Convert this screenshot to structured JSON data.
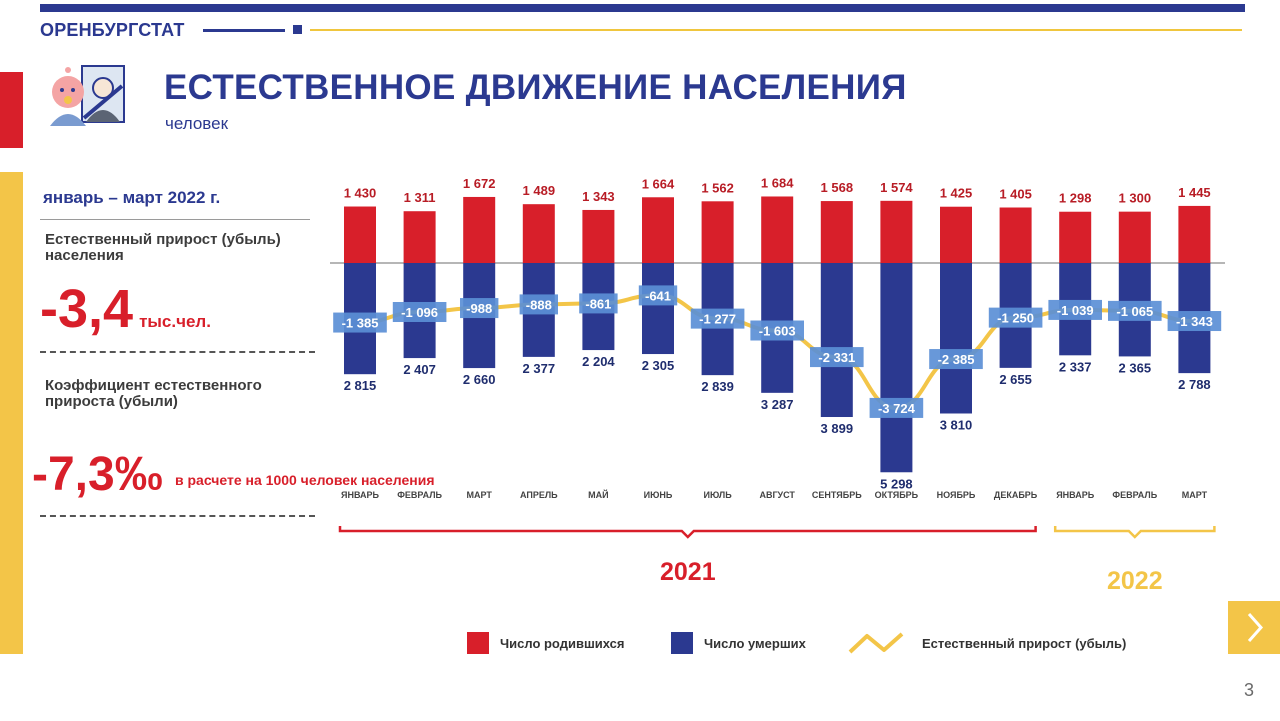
{
  "header": {
    "brand": "ОРЕНБУРГСТАТ",
    "title": "ЕСТЕСТВЕННОЕ ДВИЖЕНИЕ НАСЕЛЕНИЯ",
    "subtitle": "человек"
  },
  "summary": {
    "period": "январь – март 2022 г.",
    "growth_label": "Естественный прирост (убыль) населения",
    "growth_value": "-3,4",
    "growth_unit": "тыс.чел.",
    "coef_label": "Коэффициент естественного прироста (убыли)",
    "coef_value": "-7,3‰",
    "coef_unit": "в расчете на 1000 человек населения"
  },
  "chart_data": {
    "type": "bar",
    "categories": [
      "ЯНВАРЬ",
      "ФЕВРАЛЬ",
      "МАРТ",
      "АПРЕЛЬ",
      "МАЙ",
      "ИЮНЬ",
      "ИЮЛЬ",
      "АВГУСТ",
      "СЕНТЯБРЬ",
      "ОКТЯБРЬ",
      "НОЯБРЬ",
      "ДЕКАБРЬ",
      "ЯНВАРЬ",
      "ФЕВРАЛЬ",
      "МАРТ"
    ],
    "series": [
      {
        "name": "Число родившихся",
        "color": "#d81f2a",
        "values": [
          1430,
          1311,
          1672,
          1489,
          1343,
          1664,
          1562,
          1684,
          1568,
          1574,
          1425,
          1405,
          1298,
          1300,
          1445
        ],
        "labels": [
          "1 430",
          "1 311",
          "1 672",
          "1 489",
          "1 343",
          "1 664",
          "1 562",
          "1 684",
          "1 568",
          "1 574",
          "1 425",
          "1 405",
          "1 298",
          "1 300",
          "1 445"
        ]
      },
      {
        "name": "Число умерших",
        "color": "#2b3990",
        "values": [
          2815,
          2407,
          2660,
          2377,
          2204,
          2305,
          2839,
          3287,
          3899,
          5298,
          3810,
          2655,
          2337,
          2365,
          2788
        ],
        "labels": [
          "2 815",
          "2 407",
          "2 660",
          "2 377",
          "2 204",
          "2 305",
          "2 839",
          "3 287",
          "3 899",
          "5 298",
          "3 810",
          "2 655",
          "2 337",
          "2 365",
          "2 788"
        ]
      },
      {
        "name": "Естественный прирост (убыль)",
        "color": "#f3c548",
        "values": [
          -1385,
          -1096,
          -988,
          -888,
          -861,
          -641,
          -1277,
          -1603,
          -2331,
          -3724,
          -2385,
          -1250,
          -1039,
          -1065,
          -1343
        ],
        "labels": [
          "-1 385",
          "-1 096",
          "-988",
          "-888",
          "-861",
          "-641",
          "-1 277",
          "-1 603",
          "-2 331",
          "-3 724",
          "-2 385",
          "-1 250",
          "-1 039",
          "-1 065",
          "-1 343"
        ]
      }
    ],
    "years": [
      {
        "label": "2021",
        "from": 0,
        "to": 11,
        "color": "#d81f2a"
      },
      {
        "label": "2022",
        "from": 12,
        "to": 14,
        "color": "#f3c548"
      }
    ],
    "legend_position": "bottom"
  },
  "page": {
    "number": "3"
  },
  "colors": {
    "navy": "#2b3990",
    "red": "#d81f2a",
    "gold": "#f3c548",
    "label_box": "#5b8fd6"
  }
}
